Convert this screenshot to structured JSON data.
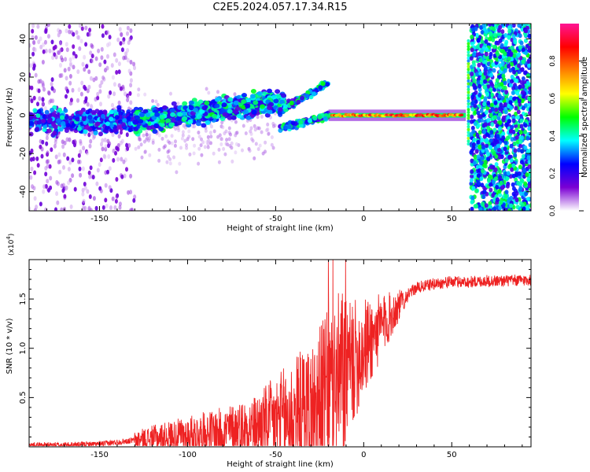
{
  "title": "C2E5.2024.057.17.34.R15",
  "chart_data": [
    {
      "type": "heatmap",
      "xlabel": "Height of straight line (km)",
      "ylabel": "Frequency (Hz)",
      "xlim": [
        -190,
        95
      ],
      "ylim": [
        -50,
        48
      ],
      "xticks": [
        -150,
        -100,
        -50,
        0,
        50
      ],
      "yticks": [
        -40,
        -20,
        0,
        20,
        40
      ],
      "colorbar": {
        "label": "Normalized spectral amplitude",
        "range": [
          0,
          1
        ],
        "ticks": [
          0.0,
          0.2,
          0.4,
          0.6,
          0.8
        ],
        "colors": [
          "#ffffff",
          "#7b00d4",
          "#0000ff",
          "#00ffff",
          "#00ff00",
          "#ffff00",
          "#ff8000",
          "#ff0000",
          "#ff1493"
        ]
      },
      "features": [
        {
          "x": [
            -190,
            -130
          ],
          "y": [
            -8,
            2
          ],
          "amplitude": 0.35,
          "label": "scattered low-altitude signal"
        },
        {
          "x": [
            -130,
            -45
          ],
          "y": [
            -8,
            8
          ],
          "amplitude": 0.4,
          "label": "rising main band"
        },
        {
          "x": [
            -45,
            -20
          ],
          "y": [
            -8,
            18
          ],
          "amplitude": 0.4,
          "label": "split branches"
        },
        {
          "x": [
            -20,
            58
          ],
          "y": [
            -1,
            1
          ],
          "amplitude": 0.9,
          "label": "carrier line"
        },
        {
          "x": [
            60,
            95
          ],
          "y": [
            -50,
            48
          ],
          "amplitude": 0.3,
          "label": "noise above 60 km"
        }
      ]
    },
    {
      "type": "line",
      "xlabel": "Height of straight line (km)",
      "ylabel": "SNR (10 * v/v)",
      "y_multiplier": "(x10",
      "y_multiplier_exp": "4",
      "y_multiplier_close": ")",
      "xlim": [
        -190,
        95
      ],
      "ylim": [
        0,
        1.9
      ],
      "xticks": [
        -150,
        -100,
        -50,
        0,
        50
      ],
      "yticks": [
        0.5,
        1.0,
        1.5
      ],
      "series": [
        {
          "color": "#ee2222",
          "x": [
            -190,
            -170,
            -150,
            -140,
            -130,
            -120,
            -110,
            -100,
            -90,
            -80,
            -70,
            -60,
            -50,
            -40,
            -30,
            -25,
            -20,
            -15,
            -10,
            -5,
            0,
            5,
            10,
            15,
            20,
            25,
            30,
            40,
            50,
            60,
            70,
            80,
            95
          ],
          "y": [
            0.02,
            0.02,
            0.03,
            0.05,
            0.07,
            0.1,
            0.12,
            0.14,
            0.16,
            0.18,
            0.22,
            0.25,
            0.3,
            0.38,
            0.45,
            0.55,
            0.65,
            0.75,
            0.85,
            0.95,
            1.05,
            1.15,
            1.25,
            1.35,
            1.45,
            1.55,
            1.62,
            1.66,
            1.68,
            1.68,
            1.69,
            1.69,
            1.7
          ]
        }
      ]
    }
  ]
}
